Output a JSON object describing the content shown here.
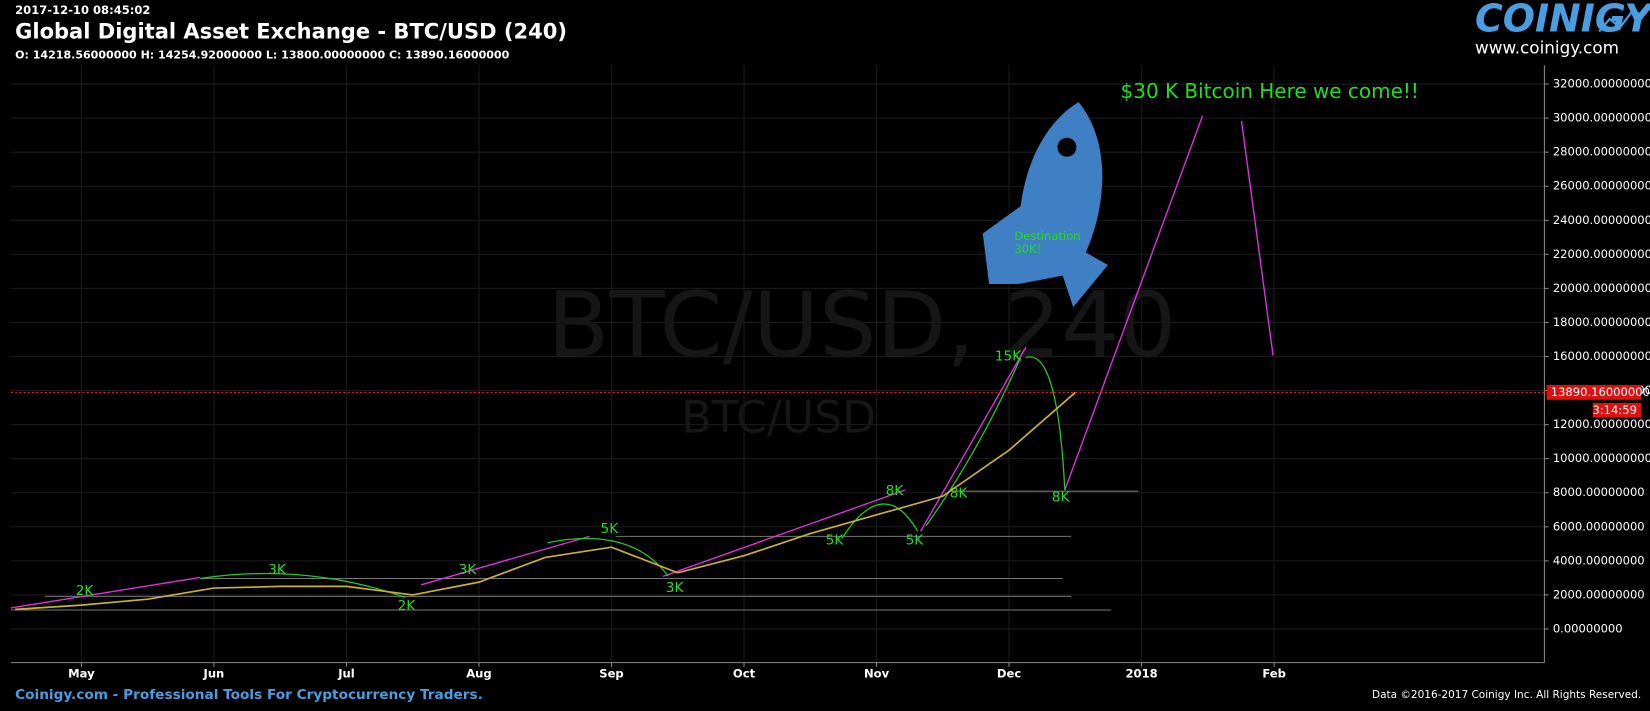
{
  "chart_data": {
    "type": "line",
    "timestamp": "2017-12-10 08:45:02",
    "title": "Global Digital Asset Exchange - BTC/USD (240)",
    "ohlc": "O: 14218.56000000 H: 14254.92000000 L: 13800.00000000 C: 13890.16000000",
    "watermark": "BTC/USD, 240",
    "watermark_sub": "BTC/USD",
    "categories": [
      null,
      "May",
      null,
      "Jun",
      null,
      "Jul",
      null,
      "Aug",
      null,
      "Sep",
      null,
      "Oct",
      null,
      "Nov",
      null,
      "Dec",
      null,
      "2018",
      null,
      "Feb"
    ],
    "values": [
      1150,
      1400,
      1750,
      2400,
      2500,
      2500,
      2000,
      2750,
      4200,
      4800,
      3300,
      4300,
      5600,
      6700,
      7800,
      10500,
      13890,
      null,
      null,
      null
    ],
    "color": "#c9b037",
    "ylim": [
      -1977,
      33107
    ],
    "yticks": [
      {
        "value": 0,
        "label": "0.00000000"
      },
      {
        "value": 2000,
        "label": "2000.00000000"
      },
      {
        "value": 4000,
        "label": "4000.00000000"
      },
      {
        "value": 6000,
        "label": "6000.00000000"
      },
      {
        "value": 8000,
        "label": "8000.00000000"
      },
      {
        "value": 10000,
        "label": "10000.00000000"
      },
      {
        "value": 12000,
        "label": "12000.00000000"
      },
      {
        "value": 14000,
        "label": "14000.00000000"
      },
      {
        "value": 16000,
        "label": "16000.00000000"
      },
      {
        "value": 18000,
        "label": "18000.00000000"
      },
      {
        "value": 20000,
        "label": "20000.00000000"
      },
      {
        "value": 22000,
        "label": "22000.00000000"
      },
      {
        "value": 24000,
        "label": "24000.00000000"
      },
      {
        "value": 26000,
        "label": "26000.00000000"
      },
      {
        "value": 28000,
        "label": "28000.00000000"
      },
      {
        "value": 30000,
        "label": "30000.00000000"
      },
      {
        "value": 32000,
        "label": "32000.00000000"
      }
    ],
    "grid": true,
    "last_price": {
      "value": 13890.16,
      "label": "13890.16000000"
    },
    "countdown": "3:14:59",
    "annotations": [
      "$30 K Bitcoin Here we come!!",
      "Destination",
      "30K!"
    ],
    "level_labels": [
      "2K",
      "3K",
      "2K",
      "3K",
      "5K",
      "3K",
      "5K",
      "5K",
      "8K",
      "8K",
      "15K",
      "8K"
    ]
  },
  "header": {
    "logo": "COINIGY",
    "logo_url": "www.coinigy.com"
  },
  "footer": {
    "left": "Coinigy.com - Professional Tools For Cryptocurrency Traders.",
    "right": "Data ©2016-2017 Coinigy Inc. All Rights Reserved."
  }
}
